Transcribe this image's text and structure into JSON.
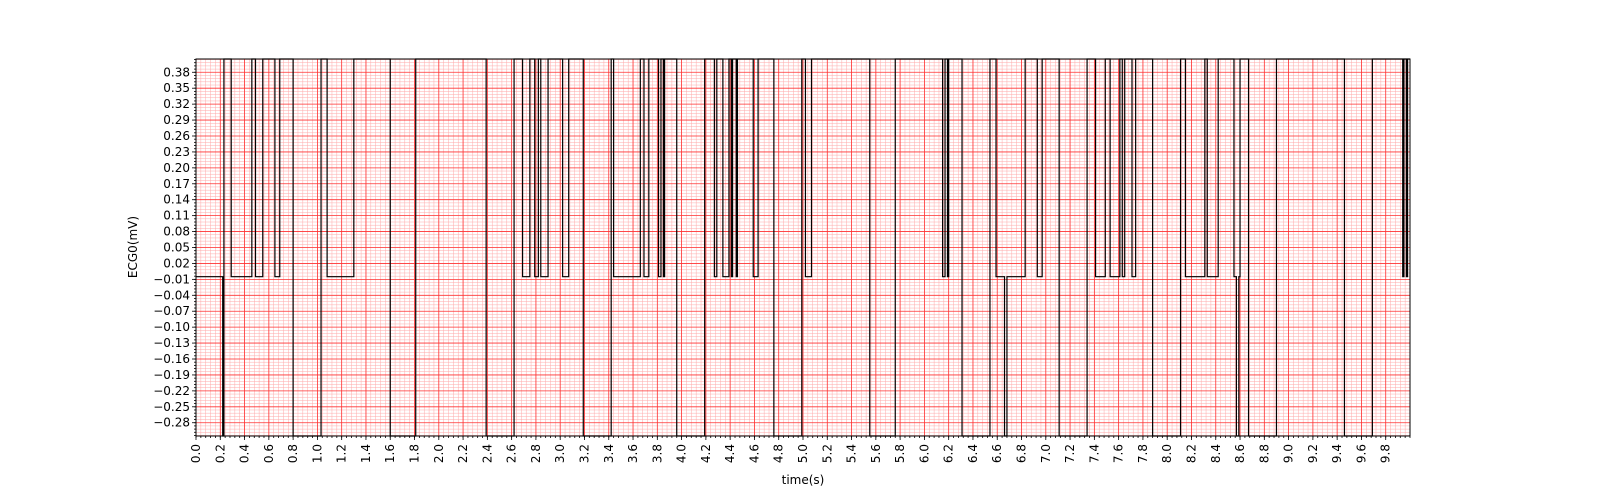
{
  "chart_data": {
    "type": "line",
    "title": "",
    "xlabel": "time(s)",
    "ylabel": "ECG0(mV)",
    "xlim": [
      0.0,
      10.0
    ],
    "ylim": [
      -0.305,
      0.405
    ],
    "grid": true,
    "colors": {
      "line": "#000000",
      "grid_major": "#ff3333",
      "grid_minor": "#ffaaaa",
      "background": "#ffffff"
    },
    "x_ticks": [
      "0.0",
      "0.2",
      "0.4",
      "0.6",
      "0.8",
      "1.0",
      "1.2",
      "1.4",
      "1.6",
      "1.8",
      "2.0",
      "2.2",
      "2.4",
      "2.6",
      "2.8",
      "3.0",
      "3.2",
      "3.4",
      "3.6",
      "3.8",
      "4.0",
      "4.2",
      "4.4",
      "4.6",
      "4.8",
      "5.0",
      "5.2",
      "5.4",
      "5.6",
      "5.8",
      "6.0",
      "6.2",
      "6.4",
      "6.6",
      "6.8",
      "7.0",
      "7.2",
      "7.4",
      "7.6",
      "7.8",
      "8.0",
      "8.2",
      "8.4",
      "8.6",
      "8.8",
      "9.0",
      "9.2",
      "9.4",
      "9.6",
      "9.8"
    ],
    "y_ticks": [
      "0.38",
      "0.35",
      "0.32",
      "0.29",
      "0.26",
      "0.23",
      "0.20",
      "0.17",
      "0.14",
      "0.11",
      "0.08",
      "0.05",
      "0.02",
      "-0.01",
      "-0.04",
      "-0.07",
      "-0.10",
      "-0.13",
      "-0.16",
      "-0.19",
      "-0.22",
      "-0.25",
      "-0.28"
    ],
    "series": [
      {
        "levels": {
          "high": 0.405,
          "baseline": -0.005,
          "low": -0.305
        },
        "points": [
          [
            0.0,
            -0.005
          ],
          [
            0.22,
            -0.005
          ],
          [
            0.22,
            -0.305
          ],
          [
            0.23,
            -0.305
          ],
          [
            0.23,
            0.405
          ],
          [
            0.29,
            0.405
          ],
          [
            0.29,
            -0.005
          ],
          [
            0.46,
            -0.005
          ],
          [
            0.46,
            0.405
          ],
          [
            0.49,
            0.405
          ],
          [
            0.49,
            -0.005
          ],
          [
            0.55,
            -0.005
          ],
          [
            0.55,
            0.405
          ],
          [
            0.65,
            0.405
          ],
          [
            0.65,
            -0.005
          ],
          [
            0.69,
            -0.005
          ],
          [
            0.69,
            0.405
          ],
          [
            0.8,
            0.405
          ],
          [
            0.8,
            -0.305
          ],
          [
            1.03,
            -0.305
          ],
          [
            1.03,
            0.405
          ],
          [
            1.08,
            0.405
          ],
          [
            1.08,
            -0.005
          ],
          [
            1.3,
            -0.005
          ],
          [
            1.3,
            0.405
          ],
          [
            1.6,
            0.405
          ],
          [
            1.6,
            -0.305
          ],
          [
            1.81,
            -0.305
          ],
          [
            1.81,
            0.405
          ],
          [
            2.39,
            0.405
          ],
          [
            2.39,
            -0.305
          ],
          [
            2.62,
            -0.305
          ],
          [
            2.62,
            0.405
          ],
          [
            2.69,
            0.405
          ],
          [
            2.69,
            -0.005
          ],
          [
            2.75,
            -0.005
          ],
          [
            2.75,
            0.405
          ],
          [
            2.79,
            0.405
          ],
          [
            2.79,
            -0.005
          ],
          [
            2.82,
            -0.005
          ],
          [
            2.82,
            0.405
          ],
          [
            2.84,
            0.405
          ],
          [
            2.84,
            -0.005
          ],
          [
            2.9,
            -0.005
          ],
          [
            2.9,
            0.405
          ],
          [
            3.02,
            0.405
          ],
          [
            3.02,
            -0.005
          ],
          [
            3.07,
            -0.005
          ],
          [
            3.07,
            0.405
          ],
          [
            3.19,
            0.405
          ],
          [
            3.19,
            -0.305
          ],
          [
            3.42,
            -0.305
          ],
          [
            3.42,
            0.405
          ],
          [
            3.44,
            0.405
          ],
          [
            3.44,
            -0.005
          ],
          [
            3.66,
            -0.005
          ],
          [
            3.66,
            0.405
          ],
          [
            3.69,
            0.405
          ],
          [
            3.69,
            -0.005
          ],
          [
            3.73,
            -0.005
          ],
          [
            3.73,
            0.405
          ],
          [
            3.81,
            0.405
          ],
          [
            3.81,
            -0.005
          ],
          [
            3.83,
            -0.005
          ],
          [
            3.83,
            0.405
          ],
          [
            3.85,
            0.405
          ],
          [
            3.85,
            -0.005
          ],
          [
            3.86,
            -0.005
          ],
          [
            3.86,
            0.405
          ],
          [
            3.96,
            0.405
          ],
          [
            3.96,
            -0.305
          ],
          [
            4.19,
            -0.305
          ],
          [
            4.19,
            0.405
          ],
          [
            4.27,
            0.405
          ],
          [
            4.27,
            -0.005
          ],
          [
            4.29,
            -0.005
          ],
          [
            4.29,
            0.405
          ],
          [
            4.34,
            0.405
          ],
          [
            4.34,
            -0.005
          ],
          [
            4.39,
            -0.005
          ],
          [
            4.39,
            0.405
          ],
          [
            4.41,
            0.405
          ],
          [
            4.41,
            -0.005
          ],
          [
            4.42,
            -0.005
          ],
          [
            4.42,
            0.405
          ],
          [
            4.45,
            0.405
          ],
          [
            4.45,
            -0.005
          ],
          [
            4.46,
            -0.005
          ],
          [
            4.46,
            0.405
          ],
          [
            4.59,
            0.405
          ],
          [
            4.59,
            -0.005
          ],
          [
            4.63,
            -0.005
          ],
          [
            4.63,
            0.405
          ],
          [
            4.76,
            0.405
          ],
          [
            4.76,
            -0.305
          ],
          [
            4.99,
            -0.305
          ],
          [
            4.99,
            0.405
          ],
          [
            5.02,
            0.405
          ],
          [
            5.02,
            -0.005
          ],
          [
            5.07,
            -0.005
          ],
          [
            5.07,
            0.405
          ],
          [
            5.55,
            0.405
          ],
          [
            5.55,
            -0.305
          ],
          [
            5.76,
            -0.305
          ],
          [
            5.76,
            0.405
          ],
          [
            6.15,
            0.405
          ],
          [
            6.15,
            -0.005
          ],
          [
            6.17,
            -0.005
          ],
          [
            6.17,
            0.405
          ],
          [
            6.19,
            0.405
          ],
          [
            6.19,
            -0.005
          ],
          [
            6.2,
            -0.005
          ],
          [
            6.2,
            0.405
          ],
          [
            6.31,
            0.405
          ],
          [
            6.31,
            -0.305
          ],
          [
            6.54,
            -0.305
          ],
          [
            6.54,
            0.405
          ],
          [
            6.59,
            0.405
          ],
          [
            6.59,
            -0.005
          ],
          [
            6.66,
            -0.005
          ],
          [
            6.66,
            -0.305
          ],
          [
            6.68,
            -0.305
          ],
          [
            6.68,
            -0.005
          ],
          [
            6.83,
            -0.005
          ],
          [
            6.83,
            0.405
          ],
          [
            6.93,
            0.405
          ],
          [
            6.93,
            -0.005
          ],
          [
            6.97,
            -0.005
          ],
          [
            6.97,
            0.405
          ],
          [
            7.11,
            0.405
          ],
          [
            7.11,
            -0.305
          ],
          [
            7.34,
            -0.305
          ],
          [
            7.34,
            0.405
          ],
          [
            7.41,
            0.405
          ],
          [
            7.41,
            -0.005
          ],
          [
            7.49,
            -0.005
          ],
          [
            7.49,
            0.405
          ],
          [
            7.53,
            0.405
          ],
          [
            7.53,
            -0.005
          ],
          [
            7.61,
            -0.005
          ],
          [
            7.61,
            0.405
          ],
          [
            7.63,
            0.405
          ],
          [
            7.63,
            -0.005
          ],
          [
            7.65,
            -0.005
          ],
          [
            7.65,
            0.405
          ],
          [
            7.71,
            0.405
          ],
          [
            7.71,
            -0.005
          ],
          [
            7.74,
            -0.005
          ],
          [
            7.74,
            0.405
          ],
          [
            7.88,
            0.405
          ],
          [
            7.88,
            -0.305
          ],
          [
            8.11,
            -0.305
          ],
          [
            8.11,
            0.405
          ],
          [
            8.15,
            0.405
          ],
          [
            8.15,
            -0.005
          ],
          [
            8.31,
            -0.005
          ],
          [
            8.31,
            0.405
          ],
          [
            8.33,
            0.405
          ],
          [
            8.33,
            -0.005
          ],
          [
            8.42,
            -0.005
          ],
          [
            8.42,
            0.405
          ],
          [
            8.55,
            0.405
          ],
          [
            8.55,
            -0.005
          ],
          [
            8.57,
            -0.005
          ],
          [
            8.57,
            -0.305
          ],
          [
            8.59,
            -0.305
          ],
          [
            8.59,
            -0.005
          ],
          [
            8.6,
            -0.005
          ],
          [
            8.6,
            0.405
          ],
          [
            8.67,
            0.405
          ],
          [
            8.67,
            -0.305
          ],
          [
            8.9,
            -0.305
          ],
          [
            8.9,
            0.405
          ],
          [
            9.46,
            0.405
          ],
          [
            9.46,
            -0.305
          ],
          [
            9.69,
            -0.305
          ],
          [
            9.69,
            0.405
          ],
          [
            9.94,
            0.405
          ],
          [
            9.94,
            -0.005
          ],
          [
            9.95,
            -0.005
          ],
          [
            9.95,
            0.405
          ],
          [
            9.97,
            0.405
          ],
          [
            9.97,
            -0.005
          ],
          [
            9.98,
            -0.005
          ],
          [
            9.98,
            0.405
          ],
          [
            10.0,
            0.405
          ]
        ]
      }
    ]
  }
}
